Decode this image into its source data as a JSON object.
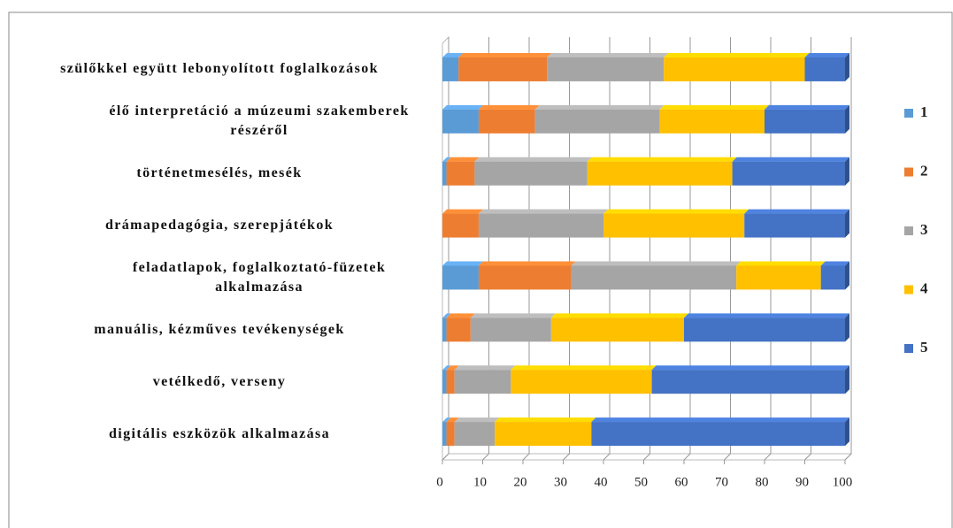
{
  "chart_data": {
    "type": "stacked_bar_horizontal",
    "categories": [
      "szülőkkel együtt lebonyolított foglalkozások",
      "élő interpretáció a múzeumi szakemberek részéről",
      "történetmesélés, mesék",
      "drámapedagógia, szerepjátékok",
      "feladatlapok, foglalkoztató-füzetek alkalmazása",
      "manuális, kézműves tevékenységek",
      "vetélkedő, verseny",
      "digitális eszközök alkalmazása"
    ],
    "series": [
      {
        "name": "1",
        "color": "#5b9bd5",
        "values": [
          4,
          9,
          1,
          0,
          9,
          1,
          1,
          1
        ]
      },
      {
        "name": "2",
        "color": "#ed7d31",
        "values": [
          22,
          14,
          7,
          9,
          23,
          6,
          2,
          2
        ]
      },
      {
        "name": "3",
        "color": "#a5a5a5",
        "values": [
          29,
          31,
          28,
          31,
          41,
          20,
          14,
          10
        ]
      },
      {
        "name": "4",
        "color": "#ffc000",
        "values": [
          35,
          26,
          36,
          35,
          21,
          33,
          35,
          24
        ]
      },
      {
        "name": "5",
        "color": "#4472c4",
        "values": [
          10,
          20,
          28,
          25,
          6,
          40,
          48,
          63
        ]
      }
    ],
    "xlim": [
      0,
      100
    ],
    "xticks": [
      0,
      10,
      20,
      30,
      40,
      50,
      60,
      70,
      80,
      90,
      100
    ],
    "grid": true,
    "legend": "right"
  }
}
